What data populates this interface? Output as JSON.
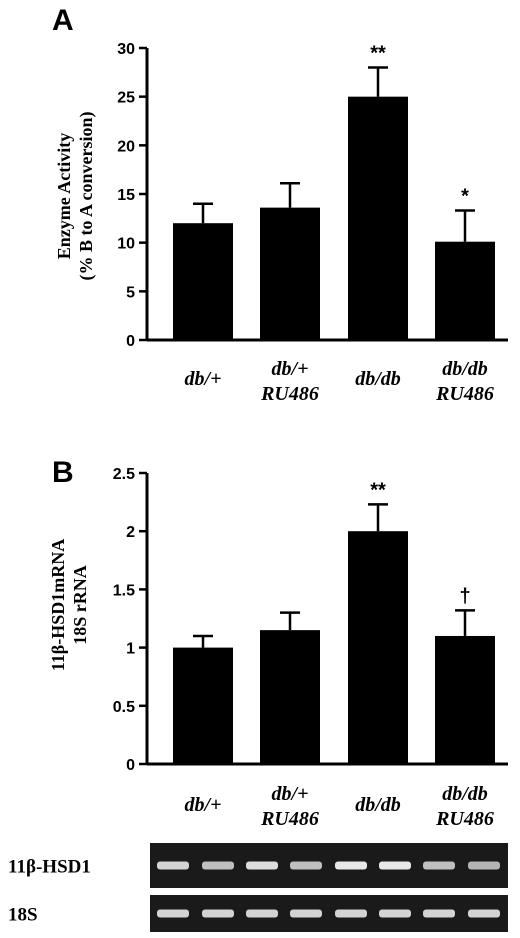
{
  "chart_data": [
    {
      "panel": "A",
      "type": "bar",
      "ylabel_lines": [
        "Enzyme Activity",
        "(% B to A conversion)"
      ],
      "categories": [
        [
          "db/+"
        ],
        [
          "db/+",
          "RU486"
        ],
        [
          "db/db"
        ],
        [
          "db/db",
          "RU486"
        ]
      ],
      "values": [
        12,
        13.6,
        25,
        10.1
      ],
      "errors": [
        2,
        2.5,
        3,
        3.2
      ],
      "significance": [
        "",
        "",
        "**",
        "*"
      ],
      "ylim": [
        0,
        30
      ],
      "yticks": [
        "0",
        "5",
        "10",
        "15",
        "20",
        "25",
        "30"
      ]
    },
    {
      "panel": "B",
      "type": "bar",
      "ylabel_lines": [
        "11β-HSD1mRNA",
        "18S rRNA"
      ],
      "categories": [
        [
          "db/+"
        ],
        [
          "db/+",
          "RU486"
        ],
        [
          "db/db"
        ],
        [
          "db/db",
          "RU486"
        ]
      ],
      "values": [
        1.0,
        1.15,
        2.0,
        1.1
      ],
      "errors": [
        0.1,
        0.15,
        0.23,
        0.22
      ],
      "significance": [
        "",
        "",
        "**",
        "†"
      ],
      "ylim": [
        0,
        2.5
      ],
      "yticks": [
        "0",
        "0.5",
        "1",
        "1.5",
        "2",
        "2.5"
      ]
    }
  ],
  "gel": {
    "rows": [
      {
        "label": "11β-HSD1",
        "bands": 8
      },
      {
        "label": "18S",
        "bands": 8
      }
    ]
  },
  "colors": {
    "bar": "#000000",
    "gel_background": "#1a1a1a",
    "band": "#e8e8e8"
  }
}
